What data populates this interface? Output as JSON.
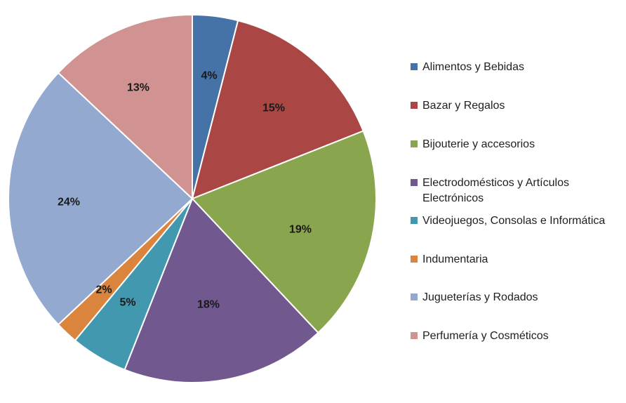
{
  "chart_data": {
    "type": "pie",
    "title": "",
    "legend_position": "right",
    "start": "top",
    "direction": "clockwise",
    "slices": [
      {
        "label": "Alimentos y Bebidas",
        "value": 4,
        "display": "4%",
        "color": "#4572A7"
      },
      {
        "label": "Bazar y Regalos",
        "value": 15,
        "display": "15%",
        "color": "#AA4643"
      },
      {
        "label": "Bijouterie y accesorios",
        "value": 19,
        "display": "19%",
        "color": "#89A54E"
      },
      {
        "label": "Electrodomésticos y Artículos Electrónicos",
        "value": 18,
        "display": "18%",
        "color": "#71588F"
      },
      {
        "label": "Videojuegos, Consolas e Informática",
        "value": 5,
        "display": "5%",
        "color": "#4198AF"
      },
      {
        "label": "Indumentaria",
        "value": 2,
        "display": "2%",
        "color": "#DB843D"
      },
      {
        "label": "Jugueterías y Rodados",
        "value": 24,
        "display": "24%",
        "color": "#93A9CF"
      },
      {
        "label": "Perfumería y Cosméticos",
        "value": 13,
        "display": "13%",
        "color": "#D19392"
      }
    ]
  }
}
